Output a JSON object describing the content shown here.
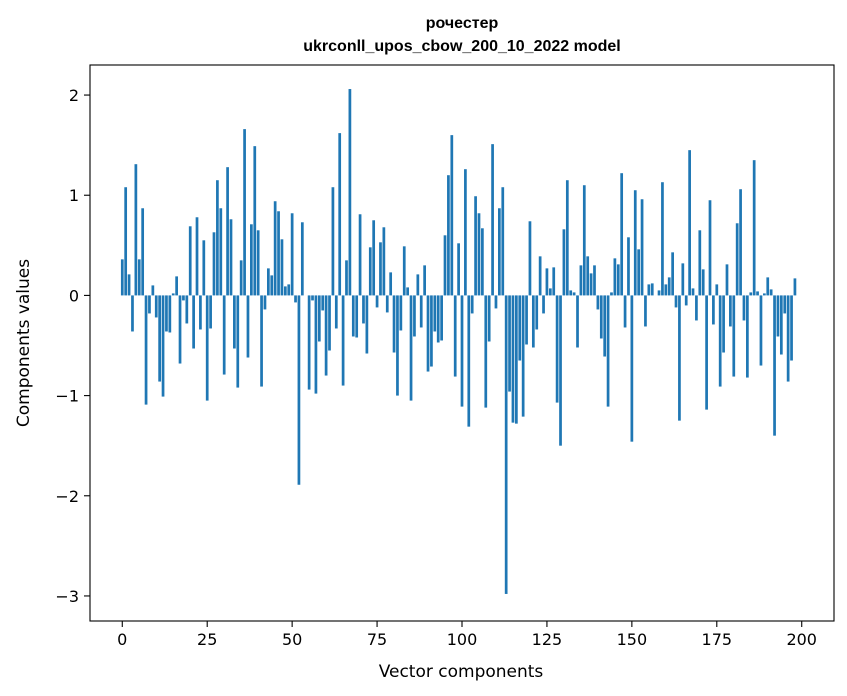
{
  "chart_data": {
    "type": "bar",
    "title": "рочестер",
    "subtitle": "ukrconll_upos_cbow_200_10_2022 model",
    "xlabel": "Vector components",
    "ylabel": "Components values",
    "xlim": [
      -9.5,
      209.5
    ],
    "ylim": [
      -3.25,
      2.3
    ],
    "xticks": [
      0,
      25,
      50,
      75,
      100,
      125,
      150,
      175,
      200
    ],
    "xtick_labels": [
      "0",
      "25",
      "50",
      "75",
      "100",
      "125",
      "150",
      "175",
      "200"
    ],
    "yticks": [
      2,
      1,
      0,
      -1,
      -2,
      -3
    ],
    "ytick_labels": [
      "2",
      "1",
      "0",
      "−1",
      "−2",
      "−3"
    ],
    "grid": false,
    "color": "#1f77b4",
    "values": [
      0.36,
      1.08,
      0.21,
      -0.36,
      1.31,
      0.36,
      0.87,
      -1.09,
      -0.18,
      0.1,
      -0.22,
      -0.86,
      -1.01,
      -0.36,
      -0.37,
      0.02,
      0.19,
      -0.68,
      -0.05,
      -0.28,
      0.69,
      -0.53,
      0.78,
      -0.34,
      0.55,
      -1.05,
      -0.33,
      0.63,
      1.15,
      0.87,
      -0.79,
      1.28,
      0.76,
      -0.53,
      -0.92,
      0.35,
      1.66,
      -0.62,
      0.71,
      1.49,
      0.65,
      -0.91,
      -0.14,
      0.27,
      0.2,
      0.94,
      0.84,
      0.56,
      0.09,
      0.11,
      0.82,
      -0.07,
      -1.89,
      0.73,
      0.0,
      -0.94,
      -0.05,
      -0.98,
      -0.46,
      -0.15,
      -0.8,
      -0.55,
      1.08,
      -0.33,
      1.62,
      -0.9,
      0.35,
      2.06,
      -0.41,
      -0.42,
      0.81,
      -0.28,
      -0.58,
      0.48,
      0.75,
      -0.12,
      0.53,
      0.68,
      -0.17,
      0.23,
      -0.57,
      -1.0,
      -0.35,
      0.49,
      0.08,
      -1.05,
      -0.41,
      0.21,
      -0.32,
      0.3,
      -0.76,
      -0.71,
      -0.36,
      -0.47,
      -0.45,
      0.6,
      1.2,
      1.6,
      -0.81,
      0.52,
      -1.11,
      1.26,
      -1.31,
      -0.18,
      0.99,
      0.82,
      0.67,
      -1.12,
      -0.46,
      1.51,
      -0.13,
      0.87,
      1.08,
      -2.98,
      -0.96,
      -1.27,
      -1.28,
      -0.65,
      -1.21,
      -0.49,
      0.74,
      -0.52,
      -0.34,
      0.39,
      -0.18,
      0.27,
      0.07,
      0.28,
      -1.07,
      -1.5,
      0.66,
      1.15,
      0.05,
      0.03,
      -0.52,
      0.3,
      1.1,
      0.39,
      0.22,
      0.3,
      -0.14,
      -0.43,
      -0.61,
      -1.11,
      0.03,
      0.37,
      0.31,
      1.22,
      -0.32,
      0.58,
      -1.46,
      1.05,
      0.46,
      0.96,
      -0.31,
      0.11,
      0.12,
      0.0,
      0.05,
      1.13,
      0.11,
      0.18,
      0.43,
      -0.12,
      -1.25,
      0.32,
      -0.1,
      1.45,
      0.07,
      -0.25,
      0.65,
      0.26,
      -1.14,
      0.95,
      -0.29,
      0.11,
      -0.91,
      -0.57,
      0.31,
      -0.31,
      -0.81,
      0.72,
      1.06,
      -0.25,
      -0.82,
      0.03,
      1.35,
      0.04,
      -0.7,
      0.02,
      0.18,
      0.06,
      -1.4,
      -0.41,
      -0.59,
      -0.18,
      -0.86,
      -0.65,
      0.17
    ]
  }
}
